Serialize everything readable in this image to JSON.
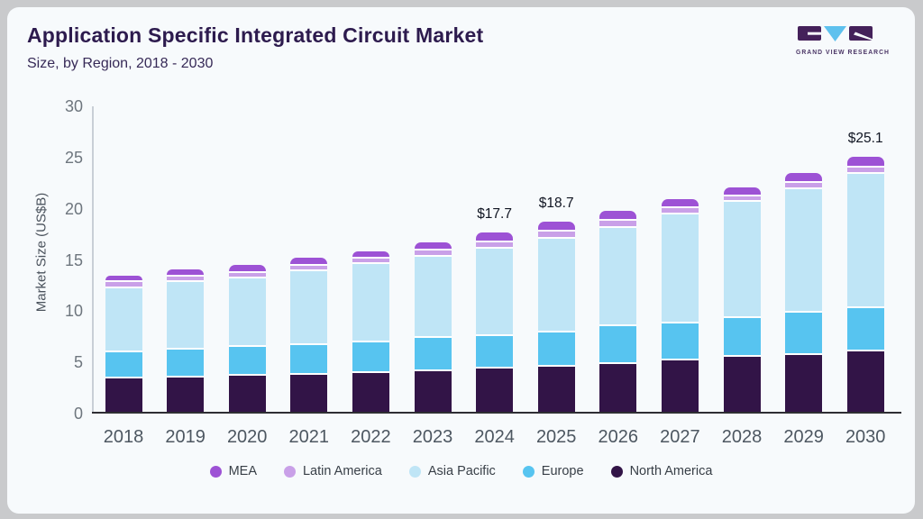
{
  "header": {
    "title": "Application Specific Integrated Circuit Market",
    "subtitle": "Size, by Region, 2018 - 2030"
  },
  "logo": {
    "text": "GRAND VIEW RESEARCH",
    "block_color": "#44215a",
    "triangle_color": "#5ec1ee",
    "text_color": "#4b3666"
  },
  "chart_data": {
    "type": "bar",
    "stacked": true,
    "title": "Application Specific Integrated Circuit Market",
    "subtitle": "Size, by Region, 2018 - 2030",
    "ylabel": "Market Size (US$B)",
    "ylim": [
      0,
      30
    ],
    "yticks": [
      0,
      5,
      10,
      15,
      20,
      25,
      30
    ],
    "grid": false,
    "legend_position": "bottom",
    "categories": [
      "2018",
      "2019",
      "2020",
      "2021",
      "2022",
      "2023",
      "2024",
      "2025",
      "2026",
      "2027",
      "2028",
      "2029",
      "2030"
    ],
    "series": [
      {
        "name": "North America",
        "color": "#321447",
        "values": [
          3.5,
          3.6,
          3.7,
          3.8,
          4.0,
          4.2,
          4.4,
          4.6,
          4.9,
          5.2,
          5.6,
          5.8,
          6.1
        ]
      },
      {
        "name": "Europe",
        "color": "#57c4f0",
        "values": [
          2.6,
          2.7,
          2.9,
          3.0,
          3.0,
          3.3,
          3.2,
          3.4,
          3.7,
          3.7,
          3.8,
          4.1,
          4.3
        ]
      },
      {
        "name": "Asia Pacific",
        "color": "#bfe5f6",
        "values": [
          6.3,
          6.7,
          6.8,
          7.3,
          7.8,
          8.0,
          8.7,
          9.2,
          9.7,
          10.7,
          11.4,
          12.2,
          13.2
        ]
      },
      {
        "name": "Latin America",
        "color": "#c9a0e8",
        "values": [
          0.6,
          0.5,
          0.5,
          0.5,
          0.5,
          0.6,
          0.6,
          0.7,
          0.7,
          0.6,
          0.6,
          0.6,
          0.6
        ]
      },
      {
        "name": "MEA",
        "color": "#9d52d5",
        "values": [
          0.5,
          0.6,
          0.6,
          0.6,
          0.5,
          0.6,
          0.8,
          0.8,
          0.8,
          0.7,
          0.7,
          0.8,
          0.9
        ]
      }
    ],
    "totals": [
      13.5,
      14.1,
      14.5,
      15.2,
      15.8,
      16.7,
      17.7,
      18.7,
      19.8,
      20.9,
      22.1,
      23.5,
      25.1
    ],
    "value_labels": {
      "2024": "$17.7",
      "2025": "$18.7",
      "2030": "$25.1"
    },
    "legend": [
      "MEA",
      "Latin America",
      "Asia Pacific",
      "Europe",
      "North America"
    ]
  }
}
